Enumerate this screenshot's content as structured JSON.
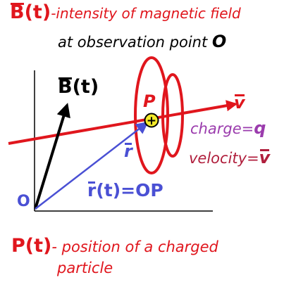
{
  "colors": {
    "red": "#e0161d",
    "blue": "#4a50d4",
    "purple": "#9b3cad",
    "maroon": "#b01e3c",
    "charge_fill": "#f3ea2a",
    "axis": "#000000"
  },
  "header": {
    "b_symbol": "B",
    "b_arg": "(t)",
    "line1_rest": "-intensity of magnetic field",
    "line2": "at observation point",
    "point_o": "O"
  },
  "vectors": {
    "b_label_symbol": "B",
    "b_label_arg": "(t)",
    "r_short": "r",
    "r_full_symbol": "r",
    "r_full_rest": "(t)=OP",
    "v_symbol": "v",
    "origin": "O",
    "point_p": "P"
  },
  "charge": {
    "text": "charge=",
    "symbol": "q",
    "sign": "+"
  },
  "velocity": {
    "text": "velocity=",
    "symbol": "v"
  },
  "footer": {
    "p_symbol": "P(t)",
    "line1_rest": "- position of a charged",
    "line2": "particle"
  }
}
